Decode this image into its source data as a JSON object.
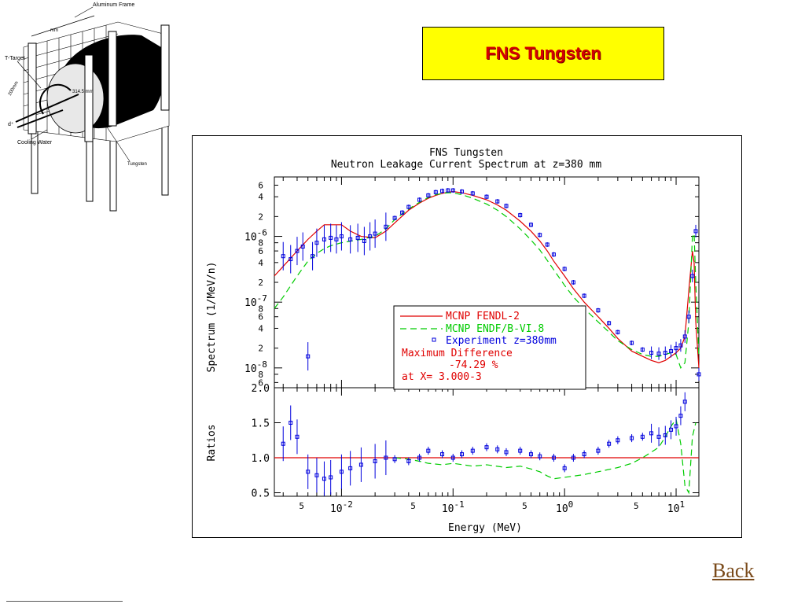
{
  "slide": {
    "title": "FNS Tungsten",
    "back_label": "Back"
  },
  "diagram": {
    "frame_label": "Aluminum Frame",
    "target_label": "T-Target",
    "depth_label": "200mm",
    "radius_label": "314.5 mm",
    "deuteron_label": "d⁺",
    "cooling_label": "Cooling Water",
    "material_label": "Tungsten",
    "dim_label": "mm"
  },
  "colors": {
    "title_bg": "#ffff00",
    "title_text": "#d40000",
    "fendl": "#e00000",
    "endf": "#00cc00",
    "experiment": "#0000dd",
    "ratio_ref": "#e00000",
    "back_link": "#7a4a1a"
  },
  "chart_data": [
    {
      "type": "line",
      "title": "FNS Tungsten",
      "subtitle": "Neutron Leakage Current Spectrum at z=380 mm",
      "ylabel": "Spectrum (1/MeV/n)",
      "xlabel": "",
      "x_scale": "log",
      "y_scale": "log",
      "xlim": [
        0.0025,
        16
      ],
      "ylim": [
        5e-09,
        8e-06
      ],
      "y_tick_labels": {
        "major": [
          {
            "value": 1e-06,
            "base": "10",
            "exp": "-6"
          },
          {
            "value": 1e-07,
            "base": "10",
            "exp": "-7"
          },
          {
            "value": 1e-08,
            "base": "10",
            "exp": "-8"
          }
        ],
        "minor": [
          {
            "value": 6e-06,
            "label": "6"
          },
          {
            "value": 4e-06,
            "label": "4"
          },
          {
            "value": 2e-06,
            "label": "2"
          },
          {
            "value": 8e-07,
            "label": "8"
          },
          {
            "value": 6e-07,
            "label": "6"
          },
          {
            "value": 4e-07,
            "label": "4"
          },
          {
            "value": 2e-07,
            "label": "2"
          },
          {
            "value": 8e-08,
            "label": "8"
          },
          {
            "value": 6e-08,
            "label": "6"
          },
          {
            "value": 4e-08,
            "label": "4"
          },
          {
            "value": 2e-08,
            "label": "2"
          },
          {
            "value": 8e-09,
            "label": "8"
          },
          {
            "value": 6e-09,
            "label": "6"
          }
        ]
      },
      "legend": {
        "placement": "lower-center",
        "entries": [
          {
            "label": "MCNP FENDL-2",
            "style": "solid",
            "color": "#e00000"
          },
          {
            "label": "MCNP ENDF/B-VI.8",
            "style": "dashed",
            "color": "#00cc00"
          },
          {
            "label": "Experiment z=380mm",
            "style": "marker",
            "color": "#0000dd"
          }
        ],
        "notes": [
          "Maximum Difference",
          "-74.29 %",
          "at X= 3.000-3"
        ]
      },
      "series": [
        {
          "name": "MCNP FENDL-2",
          "x": [
            0.0025,
            0.003,
            0.004,
            0.005,
            0.006,
            0.007,
            0.008,
            0.01,
            0.012,
            0.015,
            0.02,
            0.025,
            0.03,
            0.04,
            0.05,
            0.06,
            0.07,
            0.08,
            0.09,
            0.1,
            0.12,
            0.15,
            0.2,
            0.25,
            0.3,
            0.4,
            0.5,
            0.6,
            0.7,
            0.8,
            1.0,
            1.2,
            1.5,
            2,
            2.5,
            3,
            4,
            5,
            6,
            7,
            8,
            9,
            10,
            11,
            12,
            13,
            14,
            14.5,
            15,
            16
          ],
          "y": [
            2.5e-07,
            3.5e-07,
            6e-07,
            9e-07,
            1.2e-06,
            1.5e-06,
            1.5e-06,
            1.5e-06,
            1.2e-06,
            1e-06,
            9.5e-07,
            1.2e-06,
            1.6e-06,
            2.5e-06,
            3.2e-06,
            3.8e-06,
            4.2e-06,
            4.5e-06,
            4.7e-06,
            4.8e-06,
            4.6e-06,
            4.2e-06,
            3.6e-06,
            3e-06,
            2.5e-06,
            1.7e-06,
            1.2e-06,
            8.5e-07,
            6e-07,
            4.2e-07,
            2.5e-07,
            1.6e-07,
            1e-07,
            6e-08,
            4e-08,
            2.8e-08,
            1.8e-08,
            1.5e-08,
            1.3e-08,
            1.2e-08,
            1.3e-08,
            1.5e-08,
            1.7e-08,
            2e-08,
            3e-08,
            1.5e-07,
            6e-07,
            4e-07,
            5e-08,
            1e-08
          ]
        },
        {
          "name": "MCNP ENDF/B-VI.8",
          "x": [
            0.0025,
            0.003,
            0.004,
            0.005,
            0.006,
            0.007,
            0.008,
            0.01,
            0.015,
            0.02,
            0.025,
            0.03,
            0.04,
            0.05,
            0.06,
            0.07,
            0.08,
            0.09,
            0.1,
            0.12,
            0.15,
            0.2,
            0.25,
            0.3,
            0.4,
            0.5,
            0.6,
            0.7,
            0.8,
            1.0,
            1.2,
            1.5,
            2,
            2.5,
            3,
            4,
            5,
            6,
            7,
            8,
            9,
            10,
            11,
            12,
            13,
            14,
            14.5,
            15,
            16
          ],
          "y": [
            8e-08,
            1.2e-07,
            2.5e-07,
            4.2e-07,
            5.5e-07,
            6.5e-07,
            7.2e-07,
            8e-07,
            9e-07,
            1e-06,
            1.3e-06,
            1.8e-06,
            2.6e-06,
            3.3e-06,
            3.9e-06,
            4.3e-06,
            4.5e-06,
            4.6e-06,
            4.6e-06,
            4.3e-06,
            3.8e-06,
            3.1e-06,
            2.5e-06,
            2e-06,
            1.3e-06,
            8.8e-07,
            6.2e-07,
            4.3e-07,
            3.1e-07,
            1.8e-07,
            1.2e-07,
            8e-08,
            5e-08,
            3.5e-08,
            2.6e-08,
            1.9e-08,
            1.6e-08,
            1.5e-08,
            1.5e-08,
            1.6e-08,
            1.7e-08,
            1.6e-08,
            1e-08,
            1.2e-08,
            5e-08,
            1e-06,
            1.1e-06,
            2e-07,
            1.5e-08
          ]
        },
        {
          "name": "Experiment z=380mm",
          "x": [
            0.003,
            0.0035,
            0.004,
            0.0045,
            0.005,
            0.0055,
            0.006,
            0.007,
            0.008,
            0.009,
            0.01,
            0.012,
            0.014,
            0.016,
            0.018,
            0.02,
            0.025,
            0.03,
            0.035,
            0.04,
            0.05,
            0.06,
            0.07,
            0.08,
            0.09,
            0.1,
            0.12,
            0.15,
            0.2,
            0.25,
            0.3,
            0.4,
            0.5,
            0.6,
            0.7,
            0.8,
            1.0,
            1.2,
            1.5,
            2,
            2.5,
            3,
            4,
            5,
            6,
            7,
            8,
            9,
            10,
            11,
            12,
            13,
            14,
            15,
            16
          ],
          "y": [
            5e-07,
            4.5e-07,
            6e-07,
            7e-07,
            1.5e-08,
            5e-07,
            8e-07,
            9e-07,
            9.5e-07,
            9e-07,
            1e-06,
            9e-07,
            9.5e-07,
            8.5e-07,
            1e-06,
            1.1e-06,
            1.4e-06,
            1.9e-06,
            2.3e-06,
            2.8e-06,
            3.6e-06,
            4.2e-06,
            4.7e-06,
            4.9e-06,
            5e-06,
            5e-06,
            4.8e-06,
            4.5e-06,
            4e-06,
            3.4e-06,
            2.9e-06,
            2.1e-06,
            1.5e-06,
            1.05e-06,
            7.5e-07,
            5.3e-07,
            3.2e-07,
            2e-07,
            1.25e-07,
            7.5e-08,
            4.8e-08,
            3.5e-08,
            2.4e-08,
            1.9e-08,
            1.7e-08,
            1.65e-08,
            1.7e-08,
            1.8e-08,
            2e-08,
            2.2e-08,
            3e-08,
            6e-08,
            2.5e-07,
            1.2e-06,
            8e-09
          ]
        }
      ]
    },
    {
      "type": "line",
      "title": "",
      "ylabel": "Ratios",
      "xlabel": "Energy (MeV)",
      "x_scale": "log",
      "xlim": [
        0.0025,
        16
      ],
      "ylim": [
        0.45,
        2.0
      ],
      "y_ticks": [
        0.5,
        1.0,
        1.5,
        2.0
      ],
      "y_tick_labels": [
        "0.5",
        "1.0",
        "1.5",
        "2.0"
      ],
      "x_tick_labels": [
        {
          "value": 0.005,
          "label": "5"
        },
        {
          "value": 0.01,
          "base": "10",
          "exp": "-2"
        },
        {
          "value": 0.05,
          "label": "5"
        },
        {
          "value": 0.1,
          "base": "10",
          "exp": "-1"
        },
        {
          "value": 0.5,
          "label": "5"
        },
        {
          "value": 1.0,
          "base": "10",
          "exp": "0"
        },
        {
          "value": 5,
          "label": "5"
        },
        {
          "value": 10,
          "base": "10",
          "exp": "1"
        }
      ],
      "reference_line": 1.0,
      "series": [
        {
          "name": "FENDL-2 ratio",
          "x": [
            0.0025,
            16
          ],
          "y": [
            1.0,
            1.0
          ]
        },
        {
          "name": "ENDF/B-VI.8 ratio",
          "x": [
            0.03,
            0.04,
            0.05,
            0.06,
            0.08,
            0.1,
            0.15,
            0.2,
            0.3,
            0.4,
            0.5,
            0.6,
            0.7,
            0.8,
            1.0,
            1.5,
            2,
            3,
            4,
            5,
            6,
            7,
            8,
            9,
            10,
            11,
            12,
            13,
            14,
            15
          ],
          "y": [
            1.0,
            0.98,
            0.95,
            0.92,
            0.9,
            0.92,
            0.88,
            0.9,
            0.86,
            0.88,
            0.84,
            0.8,
            0.74,
            0.7,
            0.72,
            0.76,
            0.8,
            0.86,
            0.92,
            1.0,
            1.08,
            1.15,
            1.3,
            1.45,
            1.55,
            1.2,
            0.6,
            0.5,
            1.3,
            1.5
          ]
        },
        {
          "name": "Experiment ratio",
          "x": [
            0.003,
            0.0035,
            0.004,
            0.005,
            0.006,
            0.007,
            0.008,
            0.01,
            0.012,
            0.015,
            0.02,
            0.025,
            0.03,
            0.04,
            0.05,
            0.06,
            0.08,
            0.1,
            0.12,
            0.15,
            0.2,
            0.25,
            0.3,
            0.4,
            0.5,
            0.6,
            0.8,
            1.0,
            1.2,
            1.5,
            2,
            2.5,
            3,
            4,
            5,
            6,
            7,
            8,
            9,
            10,
            11,
            12
          ],
          "y": [
            1.2,
            1.5,
            1.3,
            0.8,
            0.75,
            0.7,
            0.72,
            0.8,
            0.85,
            0.9,
            0.95,
            1.0,
            0.98,
            0.95,
            1.0,
            1.1,
            1.05,
            1.0,
            1.05,
            1.1,
            1.15,
            1.12,
            1.08,
            1.1,
            1.05,
            1.02,
            1.0,
            0.85,
            1.0,
            1.05,
            1.1,
            1.2,
            1.25,
            1.28,
            1.3,
            1.35,
            1.3,
            1.32,
            1.4,
            1.45,
            1.6,
            1.8
          ]
        }
      ]
    }
  ]
}
